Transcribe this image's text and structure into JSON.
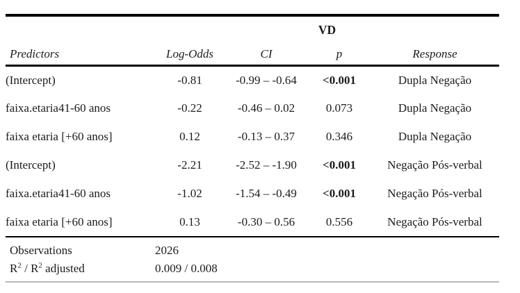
{
  "table": {
    "dependent_variable_label": "VD",
    "columns": {
      "predictors": "Predictors",
      "log_odds": "Log-Odds",
      "ci": "CI",
      "p": "p",
      "response": "Response"
    },
    "rows": [
      {
        "predictor": "(Intercept)",
        "log_odds": "-0.81",
        "ci": "-0.99 – -0.64",
        "p": "<0.001",
        "response": "Dupla Negação"
      },
      {
        "predictor": "faixa.etaria41-60 anos",
        "log_odds": "-0.22",
        "ci": "-0.46 – 0.02",
        "p": "0.073",
        "response": "Dupla Negação"
      },
      {
        "predictor": "faixa etaria [+60 anos]",
        "log_odds": "0.12",
        "ci": "-0.13 – 0.37",
        "p": "0.346",
        "response": "Dupla Negação"
      },
      {
        "predictor": "(Intercept)",
        "log_odds": "-2.21",
        "ci": "-2.52 – -1.90",
        "p": "<0.001",
        "response": "Negação Pós-verbal"
      },
      {
        "predictor": "faixa.etaria41-60 anos",
        "log_odds": "-1.02",
        "ci": "-1.54 – -0.49",
        "p": "<0.001",
        "response": "Negação Pós-verbal"
      },
      {
        "predictor": "faixa etaria [+60 anos]",
        "log_odds": "0.13",
        "ci": "-0.30 – 0.56",
        "p": "0.556",
        "response": "Negação Pós-verbal"
      }
    ],
    "summary": {
      "observations_label": "Observations",
      "observations_value": "2026",
      "r2_label_base": "R",
      "r2_label_sup": "2",
      "r2_label_mid": " / R",
      "r2_label_sup2": "2",
      "r2_label_rest": " adjusted",
      "r2_value": "0.009 / 0.008"
    }
  },
  "colors": {
    "background": "#ffffff",
    "text": "#1b1b1b",
    "rule": "#000000",
    "faint_rule": "#b8b8b8"
  }
}
